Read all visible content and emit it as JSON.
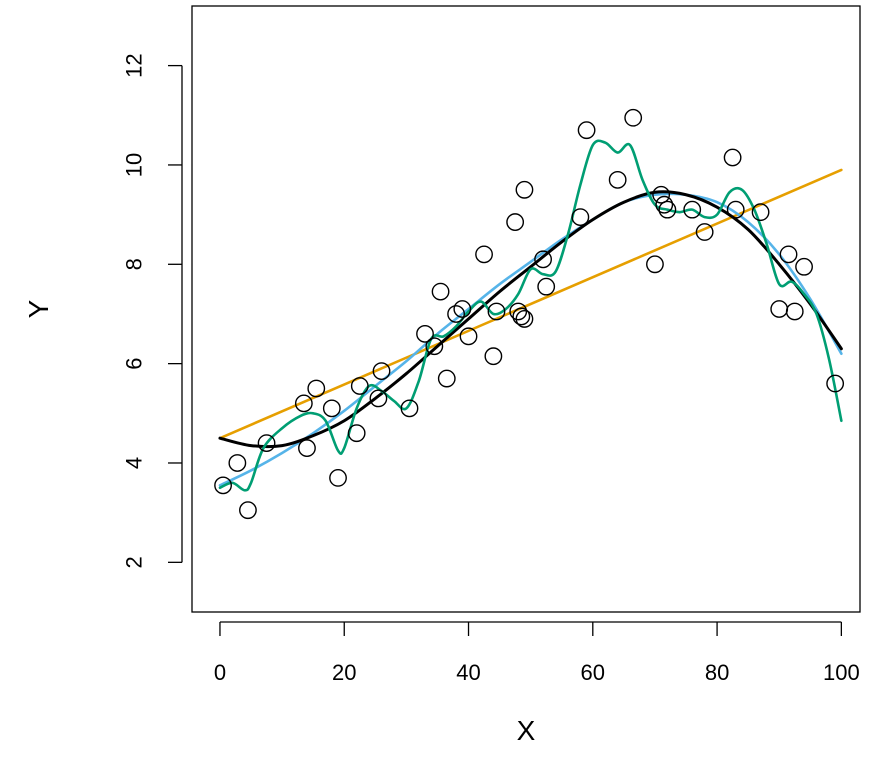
{
  "chart_data": {
    "type": "scatter",
    "title": "",
    "xlabel": "X",
    "ylabel": "Y",
    "xlim": [
      -4.5,
      103
    ],
    "ylim": [
      1,
      13.2
    ],
    "xticks": [
      0,
      20,
      40,
      60,
      80,
      100
    ],
    "xtick_labels": [
      "0",
      "20",
      "40",
      "60",
      "80",
      "100"
    ],
    "yticks": [
      2,
      4,
      6,
      8,
      10,
      12
    ],
    "ytick_labels": [
      "2",
      "4",
      "6",
      "8",
      "10",
      "12"
    ],
    "grid": false,
    "legend": "none",
    "points": {
      "x": [
        0.5,
        2.8,
        4.5,
        7.5,
        13.5,
        14,
        15.5,
        18,
        19,
        22,
        22.5,
        25.5,
        26,
        30.5,
        33,
        34.5,
        35.5,
        36.5,
        38,
        39,
        40,
        42.5,
        44,
        44.5,
        47.5,
        48,
        48.5,
        49,
        49,
        52,
        52.5,
        58,
        59,
        64,
        66.5,
        70,
        71,
        71.5,
        72,
        76,
        78,
        82.5,
        83,
        87,
        90,
        91.5,
        92.5,
        94,
        99
      ],
      "y": [
        3.55,
        4.0,
        3.05,
        4.4,
        5.2,
        4.3,
        5.5,
        5.1,
        3.7,
        4.6,
        5.55,
        5.3,
        5.85,
        5.1,
        6.6,
        6.35,
        7.45,
        5.7,
        7.0,
        7.1,
        6.55,
        8.2,
        6.15,
        7.05,
        8.85,
        7.05,
        6.95,
        6.9,
        9.5,
        8.1,
        7.55,
        8.95,
        10.7,
        9.7,
        10.95,
        8.0,
        9.4,
        9.2,
        9.1,
        9.1,
        8.65,
        10.15,
        9.1,
        9.05,
        7.1,
        8.2,
        7.05,
        7.95,
        5.6
      ],
      "stroke": "#000000"
    },
    "series": [
      {
        "kind": "linear",
        "color": "#e69f00",
        "x": [
          0,
          100
        ],
        "y": [
          4.5,
          9.9
        ]
      },
      {
        "kind": "quadratic",
        "color": "#56b4e9",
        "x": [
          0,
          5,
          10,
          15,
          20,
          25,
          30,
          35,
          40,
          45,
          50,
          55,
          60,
          65,
          70,
          75,
          80,
          85,
          90,
          95,
          100
        ],
        "y": [
          3.55,
          3.85,
          4.2,
          4.6,
          5.05,
          5.55,
          6.05,
          6.6,
          7.1,
          7.6,
          8.05,
          8.5,
          8.9,
          9.25,
          9.4,
          9.4,
          9.25,
          8.85,
          8.2,
          7.3,
          6.2
        ]
      },
      {
        "kind": "cubic",
        "color": "#000000",
        "x": [
          0,
          5,
          10,
          15,
          20,
          25,
          30,
          35,
          40,
          45,
          50,
          55,
          60,
          65,
          70,
          75,
          80,
          85,
          90,
          95,
          100
        ],
        "y": [
          4.5,
          4.35,
          4.35,
          4.55,
          4.85,
          5.3,
          5.8,
          6.35,
          6.9,
          7.45,
          7.95,
          8.45,
          8.9,
          9.25,
          9.45,
          9.4,
          9.15,
          8.7,
          8.0,
          7.2,
          6.3
        ]
      },
      {
        "kind": "smoothing-spline",
        "color": "#009e73",
        "x": [
          0,
          2,
          4,
          5,
          7,
          10,
          13,
          15,
          17,
          19,
          20,
          22,
          24,
          26,
          28,
          30,
          32,
          34,
          36,
          38,
          40,
          42,
          44,
          46,
          48,
          50,
          52,
          54,
          56,
          58,
          60,
          62,
          64,
          66,
          68,
          70,
          72,
          74,
          76,
          78,
          80,
          82,
          84,
          86,
          88,
          90,
          92,
          94,
          96,
          98,
          100
        ],
        "y": [
          3.5,
          3.6,
          3.45,
          3.6,
          4.3,
          4.7,
          4.95,
          5.0,
          4.85,
          4.25,
          4.3,
          5.1,
          5.55,
          5.45,
          5.25,
          5.1,
          5.65,
          6.5,
          6.55,
          6.75,
          7.05,
          7.25,
          7.0,
          7.1,
          7.4,
          7.9,
          7.8,
          7.85,
          8.6,
          9.6,
          10.4,
          10.45,
          10.25,
          10.4,
          9.7,
          9.2,
          9.1,
          9.05,
          9.1,
          8.95,
          9.0,
          9.45,
          9.5,
          9.1,
          8.4,
          7.6,
          7.65,
          7.4,
          7.0,
          6.1,
          4.85
        ]
      }
    ]
  }
}
